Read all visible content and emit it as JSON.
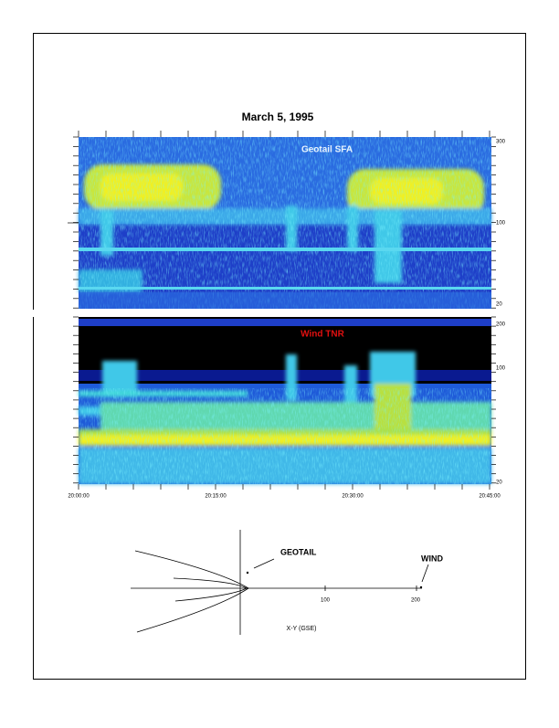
{
  "title": "March 5, 1995",
  "panels": [
    {
      "label": "Geotail SFA",
      "right_labels": [
        "300",
        "100",
        "20"
      ]
    },
    {
      "label": "Wind TNR",
      "right_labels": [
        "200",
        "100",
        "20"
      ]
    }
  ],
  "time_labels": [
    "20:00:00",
    "20:15:00",
    "20:30:00",
    "20:45:00"
  ],
  "diagram": {
    "geotail": "GEOTAIL",
    "wind": "WIND",
    "ticks": [
      "100",
      "200"
    ],
    "axis_label": "X-Y (GSE)"
  }
}
